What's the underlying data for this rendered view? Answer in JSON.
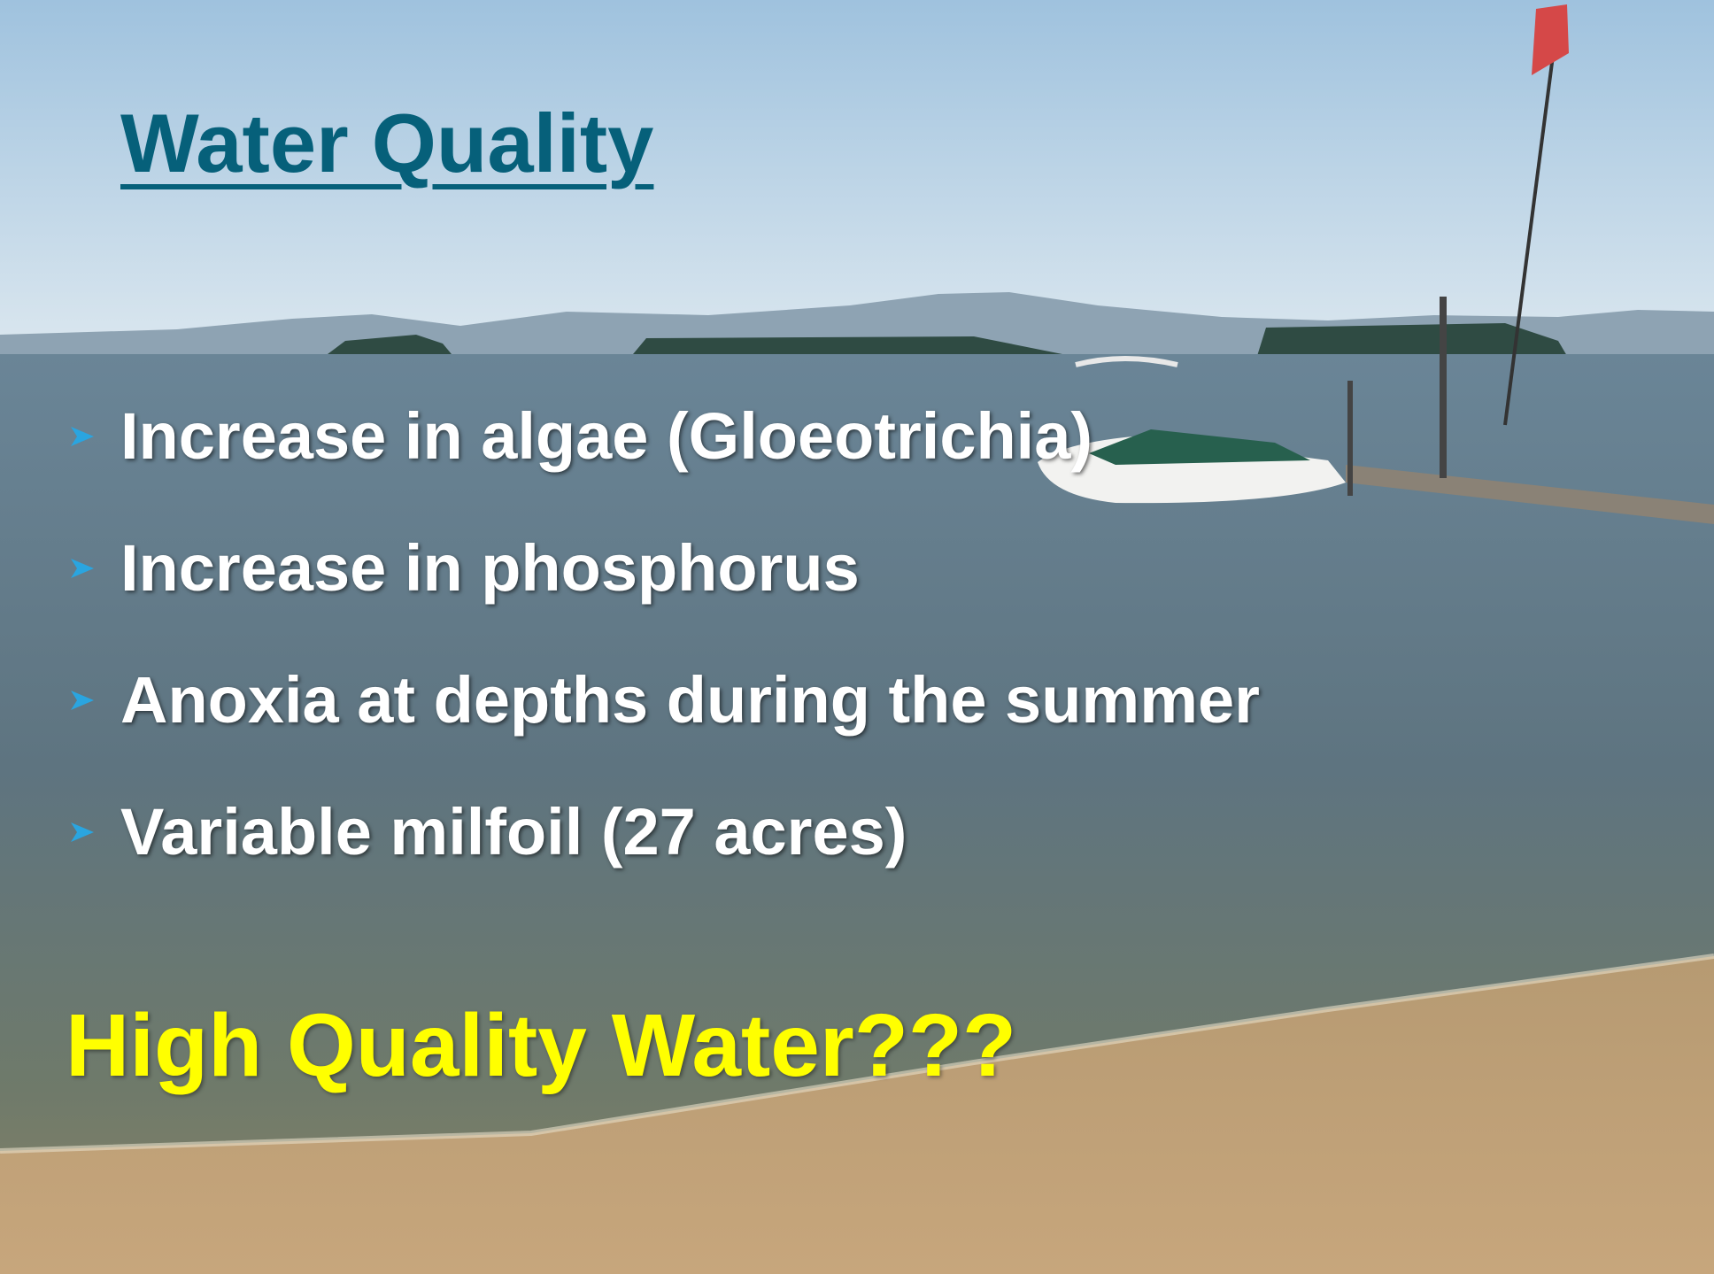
{
  "title": "Water Quality",
  "bullets": [
    "Increase in algae (Gloeotrichia)",
    "Increase in phosphorus",
    "Anoxia at depths during the summer",
    "Variable milfoil (27 acres)"
  ],
  "tagline": "High Quality Water???"
}
